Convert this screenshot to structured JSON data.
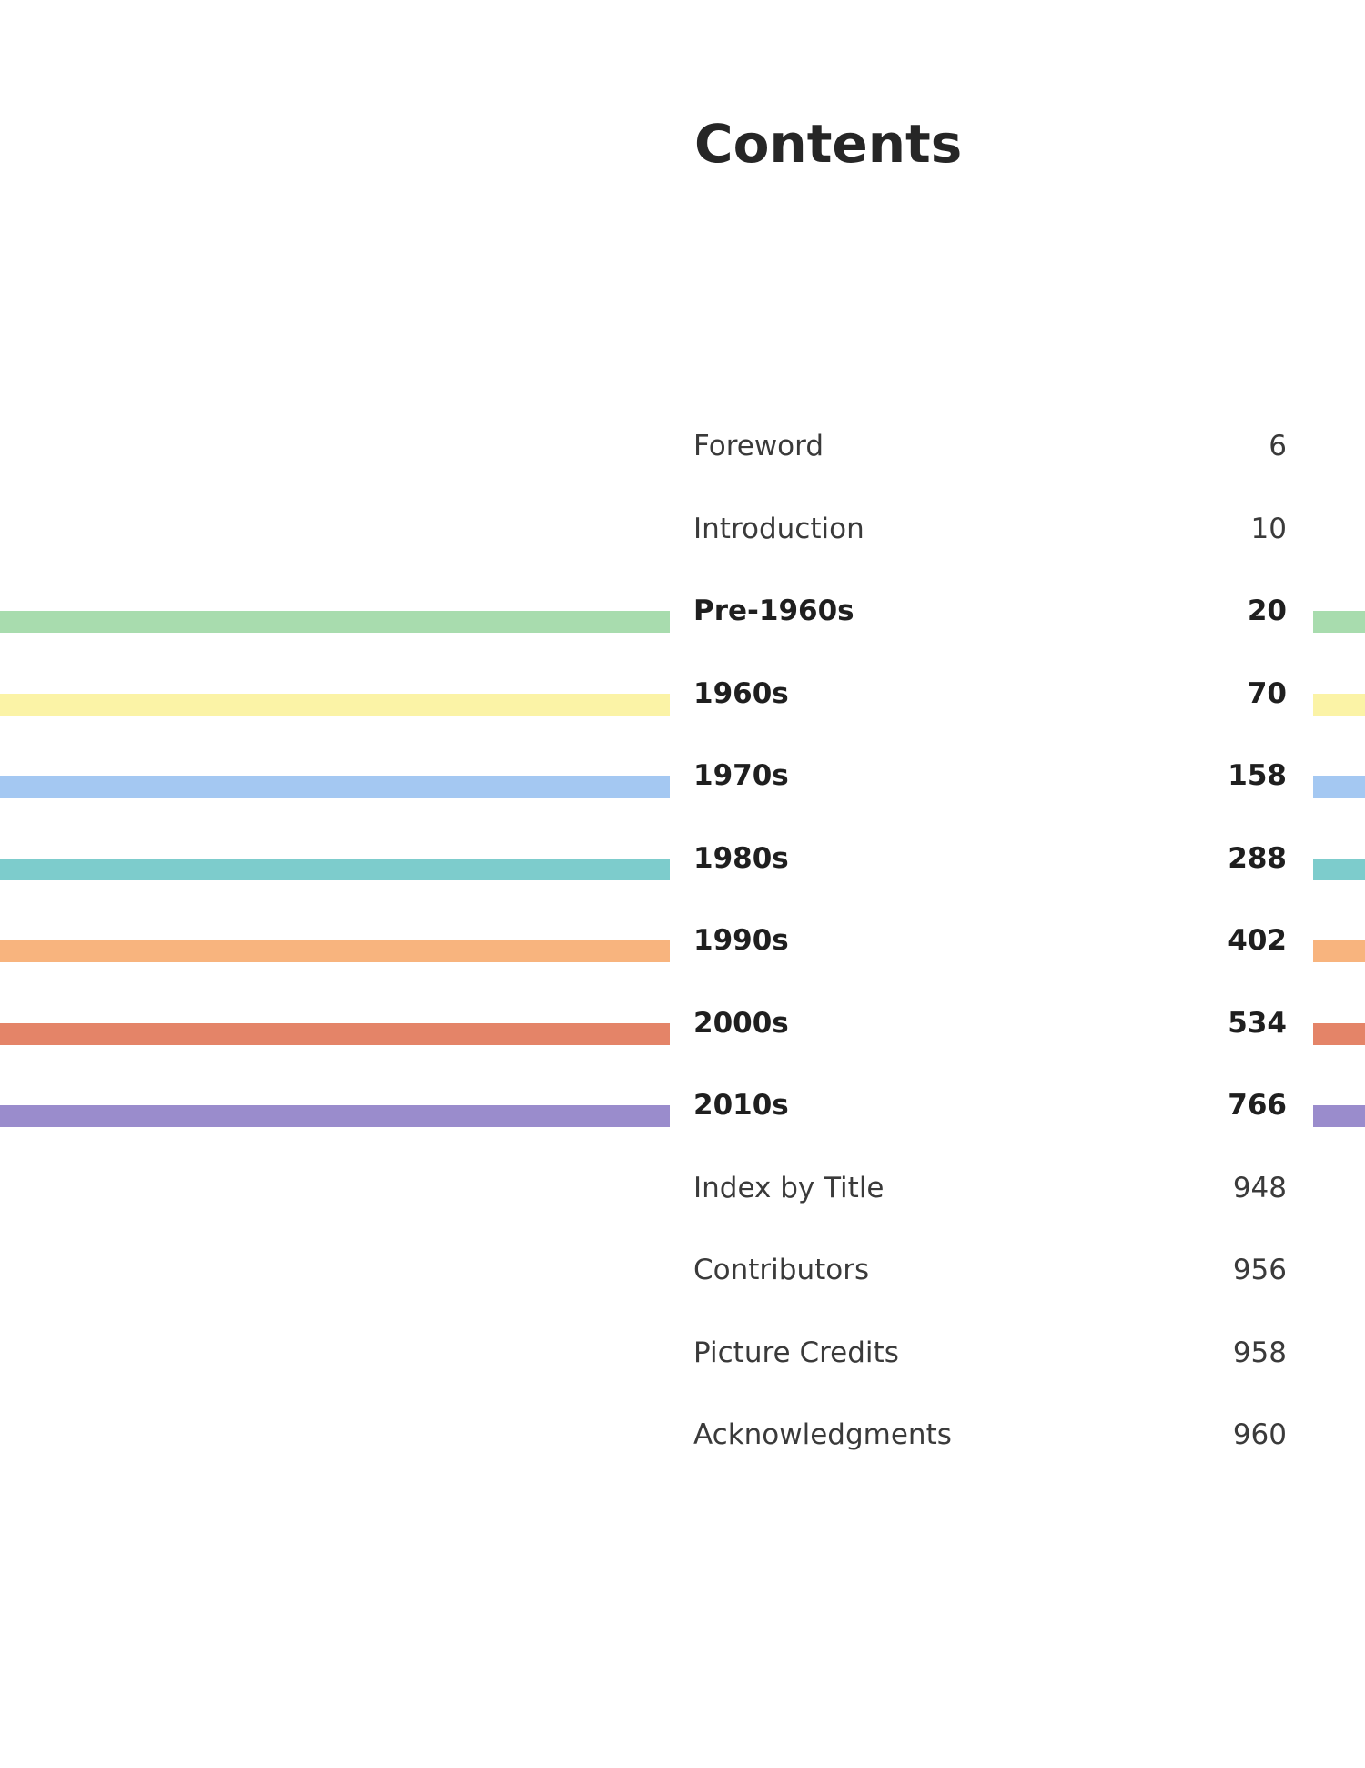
{
  "title": "Contents",
  "entries": [
    {
      "label": "Foreword",
      "page": "6",
      "style": "regular",
      "color": ""
    },
    {
      "label": "Introduction",
      "page": "10",
      "style": "regular",
      "color": ""
    },
    {
      "label": "Pre-1960s",
      "page": "20",
      "style": "bold",
      "color": "#a8dcae"
    },
    {
      "label": "1960s",
      "page": "70",
      "style": "bold",
      "color": "#fbf3a6"
    },
    {
      "label": "1970s",
      "page": "158",
      "style": "bold",
      "color": "#a4c8f2"
    },
    {
      "label": "1980s",
      "page": "288",
      "style": "bold",
      "color": "#7dcccc"
    },
    {
      "label": "1990s",
      "page": "402",
      "style": "bold",
      "color": "#f8b47e"
    },
    {
      "label": "2000s",
      "page": "534",
      "style": "bold",
      "color": "#e48468"
    },
    {
      "label": "2010s",
      "page": "766",
      "style": "bold",
      "color": "#9a8ccc"
    },
    {
      "label": "Index by Title",
      "page": "948",
      "style": "regular",
      "color": ""
    },
    {
      "label": "Contributors",
      "page": "956",
      "style": "regular",
      "color": ""
    },
    {
      "label": "Picture Credits",
      "page": "958",
      "style": "regular",
      "color": ""
    },
    {
      "label": "Acknowledgments",
      "page": "960",
      "style": "regular",
      "color": ""
    }
  ]
}
